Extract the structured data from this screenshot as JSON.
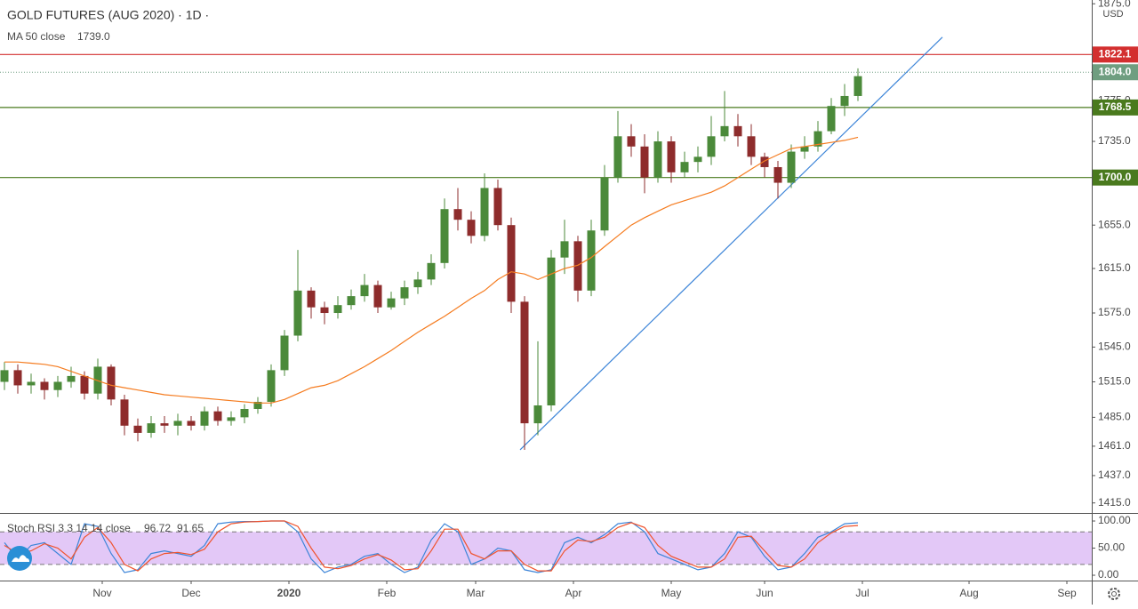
{
  "chart_data": {
    "type": "candlestick",
    "title": "GOLD FUTURES (AUG 2020) · 1D ·",
    "currency": "USD",
    "x": [
      1,
      4,
      7,
      10,
      13,
      16,
      19,
      22,
      25,
      28,
      31,
      34,
      37,
      40,
      43,
      46,
      49,
      52,
      55,
      58,
      61,
      64,
      67,
      70,
      73,
      76,
      79,
      82,
      85,
      88,
      91,
      94,
      97,
      100,
      103,
      106,
      109,
      112,
      115,
      118,
      121,
      124,
      127,
      130,
      133,
      136,
      139,
      142,
      145,
      148,
      151,
      154,
      157,
      160,
      163,
      166,
      169,
      172,
      175,
      178,
      181,
      184,
      187,
      190,
      193
    ],
    "open": [
      1515,
      1525,
      1512,
      1515,
      1508,
      1515,
      1520,
      1505,
      1528,
      1500,
      1478,
      1472,
      1480,
      1478,
      1482,
      1478,
      1490,
      1482,
      1485,
      1492,
      1498,
      1525,
      1555,
      1595,
      1580,
      1575,
      1582,
      1590,
      1600,
      1580,
      1588,
      1598,
      1605,
      1620,
      1670,
      1660,
      1645,
      1690,
      1655,
      1585,
      1480,
      1495,
      1625,
      1640,
      1595,
      1650,
      1700,
      1740,
      1730,
      1700,
      1735,
      1705,
      1715,
      1720,
      1740,
      1750,
      1740,
      1720,
      1710,
      1695,
      1725,
      1730,
      1745,
      1770,
      1780
    ],
    "high": [
      1532,
      1530,
      1522,
      1518,
      1520,
      1528,
      1524,
      1535,
      1530,
      1504,
      1484,
      1486,
      1486,
      1488,
      1486,
      1494,
      1494,
      1490,
      1496,
      1502,
      1530,
      1560,
      1632,
      1598,
      1585,
      1590,
      1596,
      1610,
      1604,
      1594,
      1604,
      1612,
      1628,
      1680,
      1690,
      1668,
      1704,
      1698,
      1662,
      1590,
      1550,
      1632,
      1660,
      1645,
      1660,
      1712,
      1765,
      1752,
      1742,
      1745,
      1740,
      1725,
      1730,
      1760,
      1785,
      1762,
      1752,
      1724,
      1716,
      1732,
      1740,
      1755,
      1778,
      1792,
      1808
    ],
    "low": [
      1508,
      1505,
      1505,
      1500,
      1502,
      1510,
      1500,
      1500,
      1495,
      1470,
      1465,
      1468,
      1472,
      1470,
      1474,
      1474,
      1478,
      1478,
      1480,
      1488,
      1494,
      1520,
      1550,
      1570,
      1565,
      1570,
      1578,
      1585,
      1575,
      1578,
      1582,
      1592,
      1600,
      1615,
      1650,
      1638,
      1640,
      1650,
      1575,
      1458,
      1470,
      1490,
      1610,
      1585,
      1590,
      1645,
      1695,
      1720,
      1685,
      1695,
      1695,
      1700,
      1705,
      1712,
      1735,
      1730,
      1712,
      1700,
      1680,
      1690,
      1718,
      1725,
      1742,
      1760,
      1775
    ],
    "close": [
      1525,
      1512,
      1515,
      1508,
      1515,
      1520,
      1505,
      1528,
      1500,
      1478,
      1472,
      1480,
      1478,
      1482,
      1478,
      1490,
      1482,
      1485,
      1492,
      1498,
      1525,
      1555,
      1595,
      1580,
      1575,
      1582,
      1590,
      1600,
      1580,
      1588,
      1598,
      1605,
      1620,
      1670,
      1660,
      1645,
      1690,
      1655,
      1585,
      1480,
      1495,
      1625,
      1640,
      1595,
      1650,
      1700,
      1740,
      1730,
      1700,
      1735,
      1705,
      1715,
      1720,
      1740,
      1750,
      1740,
      1720,
      1710,
      1695,
      1725,
      1730,
      1745,
      1770,
      1780,
      1800
    ],
    "up_color": "#4b8a3a",
    "down_color": "#8e2c2c",
    "xlim": [
      0,
      245.6
    ],
    "xticks": [
      {
        "value": 23,
        "label": "Nov"
      },
      {
        "value": 43,
        "label": "Dec"
      },
      {
        "value": 65,
        "label": "2020"
      },
      {
        "value": 87,
        "label": "Feb"
      },
      {
        "value": 107,
        "label": "Mar"
      },
      {
        "value": 129,
        "label": "Apr"
      },
      {
        "value": 151,
        "label": "May"
      },
      {
        "value": 172,
        "label": "Jun"
      },
      {
        "value": 194,
        "label": "Jul"
      },
      {
        "value": 218,
        "label": "Aug"
      },
      {
        "value": 240,
        "label": "Sep"
      }
    ],
    "ylim": [
      1407,
      1879
    ],
    "log_scale": true,
    "yticks": [
      {
        "value": 1415,
        "label": "1415.0"
      },
      {
        "value": 1437,
        "label": "1437.0"
      },
      {
        "value": 1461,
        "label": "1461.0"
      },
      {
        "value": 1485,
        "label": "1485.0"
      },
      {
        "value": 1515,
        "label": "1515.0"
      },
      {
        "value": 1545,
        "label": "1545.0"
      },
      {
        "value": 1575,
        "label": "1575.0"
      },
      {
        "value": 1615,
        "label": "1615.0"
      },
      {
        "value": 1655,
        "label": "1655.0"
      },
      {
        "value": 1735,
        "label": "1735.0"
      },
      {
        "value": 1775,
        "label": "1775.0"
      },
      {
        "value": 1875,
        "label": "1875.0"
      }
    ],
    "ma": {
      "name": "MA 50 close",
      "color": "#f57c20",
      "value_label": "1739.0",
      "values": [
        1532,
        1532,
        1531,
        1530,
        1528,
        1524,
        1520,
        1516,
        1512,
        1510,
        1508,
        1506,
        1504,
        1503,
        1502,
        1501,
        1500,
        1499,
        1498,
        1497,
        1497,
        1500,
        1505,
        1510,
        1512,
        1516,
        1522,
        1528,
        1535,
        1542,
        1550,
        1558,
        1565,
        1572,
        1580,
        1588,
        1595,
        1605,
        1612,
        1610,
        1605,
        1610,
        1615,
        1618,
        1625,
        1635,
        1645,
        1655,
        1662,
        1668,
        1674,
        1678,
        1682,
        1686,
        1692,
        1700,
        1708,
        1716,
        1722,
        1728,
        1730,
        1732,
        1734,
        1736,
        1739
      ]
    },
    "levels": [
      {
        "value": 1822.1,
        "label": "1822.1",
        "color": "#d32f2f",
        "style": "solid"
      },
      {
        "value": 1804,
        "label": "1804.0",
        "color": "#6f9e80",
        "style": "dotted"
      },
      {
        "value": 1768.5,
        "label": "1768.5",
        "color": "#4a7a1e",
        "style": "solid"
      },
      {
        "value": 1700,
        "label": "1700.0",
        "color": "#4a7a1e",
        "style": "solid"
      }
    ],
    "trendline": {
      "x": [
        117,
        212
      ],
      "y": [
        1458,
        1840
      ],
      "color": "#3d85d8"
    },
    "oscillator": {
      "name": "Stoch RSI 3 3 14 14 close",
      "ylim": [
        -9.8,
        114.8
      ],
      "yticks": [
        {
          "value": 0,
          "label": "0.00"
        },
        {
          "value": 50,
          "label": "50.00"
        },
        {
          "value": 100,
          "label": "100.00"
        }
      ],
      "band": [
        20,
        80
      ],
      "band_color": "#e3c8f7",
      "series": [
        {
          "color": "#3d85d8",
          "values": [
            60,
            30,
            55,
            60,
            40,
            20,
            95,
            90,
            40,
            5,
            10,
            40,
            45,
            40,
            35,
            55,
            95,
            98,
            99,
            99,
            100,
            100,
            80,
            30,
            5,
            15,
            20,
            35,
            40,
            20,
            5,
            15,
            65,
            95,
            80,
            20,
            30,
            50,
            45,
            10,
            5,
            10,
            60,
            70,
            60,
            75,
            95,
            98,
            80,
            40,
            30,
            20,
            10,
            15,
            40,
            80,
            70,
            35,
            10,
            15,
            40,
            70,
            80,
            95,
            96.72
          ]
        },
        {
          "color": "#f0532d",
          "values": [
            55,
            40,
            45,
            58,
            50,
            30,
            70,
            88,
            60,
            20,
            8,
            30,
            40,
            42,
            38,
            48,
            80,
            95,
            98,
            99,
            100,
            100,
            90,
            50,
            15,
            12,
            18,
            30,
            38,
            28,
            10,
            12,
            45,
            85,
            85,
            40,
            30,
            45,
            45,
            20,
            8,
            8,
            45,
            65,
            62,
            70,
            88,
            97,
            88,
            55,
            35,
            25,
            15,
            15,
            30,
            70,
            72,
            45,
            18,
            15,
            30,
            60,
            78,
            90,
            91.65
          ]
        }
      ]
    }
  }
}
